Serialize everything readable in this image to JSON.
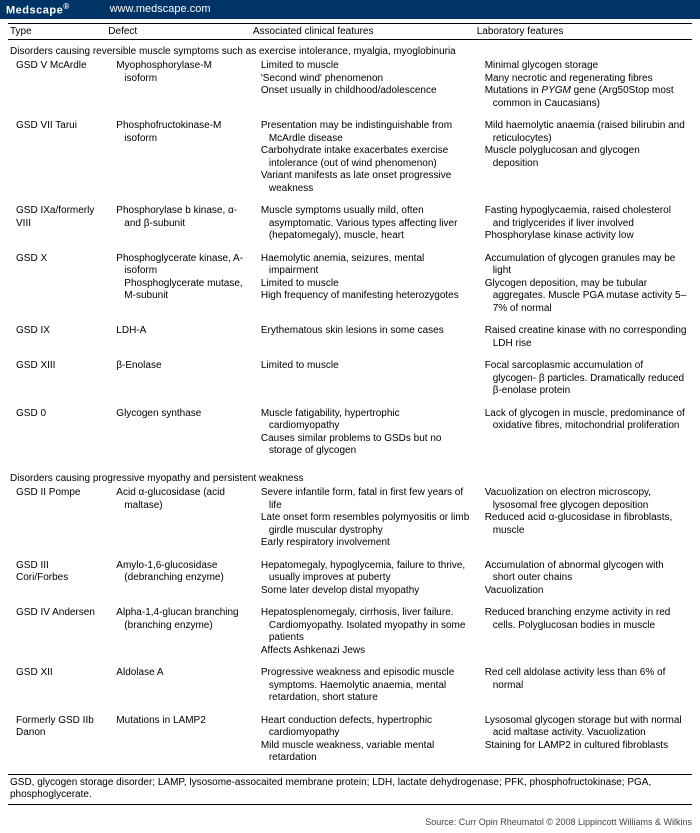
{
  "header": {
    "brand": "Medscape",
    "reg": "®",
    "url": "www.medscape.com"
  },
  "columns": [
    "Type",
    "Defect",
    "Associated clinical features",
    "Laboratory features"
  ],
  "section1_title": "Disorders causing reversible muscle symptoms such as exercise intolerance, myalgia, myoglobinuria",
  "rows1": [
    {
      "type": "GSD V McArdle",
      "defect": "Myophosphorylase-M isoform",
      "feat": [
        "Limited to muscle",
        "'Second wind' phenomenon",
        "Onset usually in childhood/adolescence"
      ],
      "lab": [
        "Minimal glycogen storage",
        "Many necrotic and regenerating fibres",
        "Mutations in <span class=\"italic\">PYGM</span> gene (Arg50Stop most common in Caucasians)"
      ]
    },
    {
      "type": "GSD VII Tarui",
      "defect": "Phosphofructokinase-M isoform",
      "feat": [
        "Presentation may be indistinguishable from McArdle disease",
        "Carbohydrate intake exacerbates exercise intolerance (out of wind phenomenon)",
        "Variant manifests as late onset progressive weakness"
      ],
      "lab": [
        "Mild haemolytic anaemia (raised bilirubin and reticulocytes)",
        "Muscle polyglucosan and glycogen deposition"
      ]
    },
    {
      "type": "GSD IXa/formerly VIII",
      "defect": "Phosphorylase b kinase, α- and β-subunit",
      "feat": [
        "Muscle symptoms usually mild, often asymptomatic. Various types affecting liver (hepatomegaly), muscle, heart"
      ],
      "lab": [
        "Fasting hypoglycaemia, raised cholesterol and triglycerides if liver involved",
        "Phosphorylase kinase activity low"
      ]
    },
    {
      "type": "GSD X",
      "defect": "Phosphoglycerate kinase, A-isoform<br>Phosphoglycerate mutase, M-subunit",
      "feat": [
        "Haemolytic anemia, seizures, mental impairment",
        "Limited to muscle",
        "High frequency of manifesting heterozygotes"
      ],
      "lab": [
        "Accumulation of glycogen granules may be light",
        "Glycogen deposition, may be tubular aggregates. Muscle PGA mutase activity 5–7% of normal"
      ]
    },
    {
      "type": "GSD IX",
      "defect": "LDH-A",
      "feat": [
        "Erythematous skin lesions in some cases"
      ],
      "lab": [
        "Raised creatine kinase with no corresponding LDH rise"
      ]
    },
    {
      "type": "GSD XIII",
      "defect": "β-Enolase",
      "feat": [
        "Limited to muscle"
      ],
      "lab": [
        "Focal sarcoplasmic accumulation of glycogen- β particles. Dramatically reduced β-enolase protein"
      ]
    },
    {
      "type": "GSD 0",
      "defect": "Glycogen synthase",
      "feat": [
        "Muscle fatigability, hypertrophic cardiomyopathy",
        "Causes similar problems to GSDs but no storage of glycogen"
      ],
      "lab": [
        "Lack of glycogen in muscle, predominance of oxidative fibres, mitochondrial proliferation"
      ]
    }
  ],
  "section2_title": "Disorders causing progressive myopathy and persistent weakness",
  "rows2": [
    {
      "type": "GSD II Pompe",
      "defect": "Acid α-glucosidase (acid maltase)",
      "feat": [
        "Severe infantile form, fatal in first few years of life",
        "Late onset form resembles polymyositis or limb girdle muscular dystrophy",
        "Early respiratory involvement"
      ],
      "lab": [
        "Vacuolization on electron microscopy, lysosomal free glycogen deposition",
        "Reduced acid α-glucosidase in fibroblasts, muscle"
      ]
    },
    {
      "type": "GSD III Cori/Forbes",
      "defect": "Amylo-1,6-glucosidase (debranching enzyme)",
      "feat": [
        "Hepatomegaly, hypoglycemia, failure to thrive, usually improves at puberty",
        "Some later develop distal myopathy"
      ],
      "lab": [
        "Accumulation of abnormal glycogen with short outer chains",
        "Vacuolization"
      ]
    },
    {
      "type": "GSD IV Andersen",
      "defect": "Alpha-1,4-glucan branching (branching enzyme)",
      "feat": [
        "Hepatosplenomegaly, cirrhosis, liver failure. Cardiomyopathy. Isolated myopathy in some patients",
        "Affects Ashkenazi Jews"
      ],
      "lab": [
        "Reduced branching enzyme activity in red cells. Polyglucosan bodies in muscle"
      ]
    },
    {
      "type": "GSD XII",
      "defect": "Aldolase A",
      "feat": [
        "Progressive weakness and episodic muscle symptoms. Haemolytic anaemia, mental retardation, short stature"
      ],
      "lab": [
        "Red cell aldolase activity less than 6% of normal"
      ]
    },
    {
      "type": "Formerly GSD IIb Danon",
      "defect": "Mutations in LAMP2",
      "feat": [
        "Heart conduction defects, hypertrophic cardiomyopathy",
        "Mild muscle weakness, variable mental retardation"
      ],
      "lab": [
        "Lysosomal glycogen storage but with normal acid maltase activity. Vacuolization",
        "Staining for LAMP2 in cultured fibroblasts"
      ]
    }
  ],
  "footnote": "GSD, glycogen storage disorder; LAMP, lysosome-assocaited membrane protein; LDH, lactate dehydrogenase; PFK, phosphofructokinase; PGA, phosphoglycerate.",
  "source": "Source: Curr Opin Rheumatol © 2008 Lippincott Williams & Wilkins"
}
